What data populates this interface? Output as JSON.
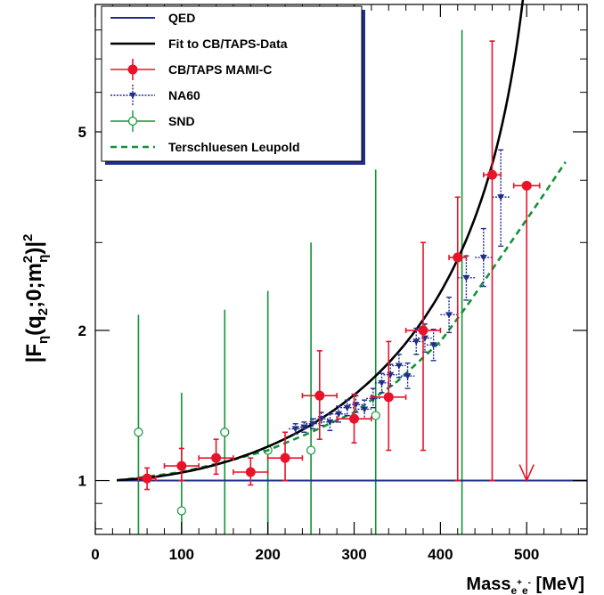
{
  "chart_data": {
    "type": "scatter",
    "title": "",
    "xlabel": {
      "main": "Mass",
      "sub": "e",
      "sup1": "+",
      "sub2": "e",
      "sup2": "-",
      "unit": " [MeV]"
    },
    "ylabel": {
      "p1": "|F",
      "s1": "η",
      "p2": "(q",
      "s2": "2",
      "p3": ";0;m",
      "sup3": "2",
      "s3": "η",
      "p4": ")|",
      "sup4": "2"
    },
    "x_scale": "linear",
    "y_scale": "log",
    "xlim": [
      0,
      570
    ],
    "ylim": [
      0.78,
      9.0
    ],
    "x_ticks": [
      "0",
      "100",
      "200",
      "300",
      "400",
      "500"
    ],
    "y_ticks": [
      {
        "value": 1,
        "label": "1"
      },
      {
        "value": 2,
        "label": "2"
      },
      {
        "value": 5,
        "label": "5"
      }
    ],
    "legend_position": "top-left",
    "colors": {
      "qed": "#1f2f8a",
      "fit": "#000000",
      "cbtaps": "#e8132a",
      "na60": "#1f2f8a",
      "snd": "#119436",
      "tl": "#119436"
    },
    "series": [
      {
        "key": "qed",
        "name": "QED",
        "kind": "line",
        "x": [
          25,
          570
        ],
        "y": [
          1.0,
          1.0
        ]
      },
      {
        "key": "fit",
        "name": "Fit to CB/TAPS-Data",
        "kind": "fit",
        "lambda_sq": 0.525,
        "x_range": [
          25,
          538
        ]
      },
      {
        "key": "cbtaps",
        "name": "CB/TAPS   MAMI-C",
        "kind": "points",
        "points": [
          {
            "x": 60,
            "y": 1.01,
            "xerr": 10,
            "ylo": 0.96,
            "yhi": 1.06
          },
          {
            "x": 100,
            "y": 1.07,
            "xerr": 20,
            "ylo": 1.0,
            "yhi": 1.16
          },
          {
            "x": 140,
            "y": 1.11,
            "xerr": 20,
            "ylo": 1.03,
            "yhi": 1.21
          },
          {
            "x": 180,
            "y": 1.04,
            "xerr": 20,
            "ylo": 0.98,
            "yhi": 1.11
          },
          {
            "x": 220,
            "y": 1.11,
            "xerr": 20,
            "ylo": 1.0,
            "yhi": 1.25
          },
          {
            "x": 260,
            "y": 1.48,
            "xerr": 20,
            "ylo": 1.21,
            "yhi": 1.82
          },
          {
            "x": 300,
            "y": 1.33,
            "xerr": 20,
            "ylo": 1.19,
            "yhi": 1.49
          },
          {
            "x": 340,
            "y": 1.47,
            "xerr": 20,
            "ylo": 1.15,
            "yhi": 1.9
          },
          {
            "x": 380,
            "y": 2.0,
            "xerr": 20,
            "ylo": 1.15,
            "yhi": 3.0
          },
          {
            "x": 420,
            "y": 2.8,
            "xerr": 10,
            "ylo": 1.0,
            "yhi": 3.7
          },
          {
            "x": 460,
            "y": 4.1,
            "xerr": 10,
            "ylo": 1.0,
            "yhi": 7.6
          },
          {
            "x": 500,
            "y": 3.9,
            "xerr": 15,
            "ylo": 1.0,
            "yhi": 3.9,
            "upper_limit": true
          }
        ]
      },
      {
        "key": "na60",
        "name": "NA60",
        "kind": "points",
        "points": [
          {
            "x": 232,
            "y": 1.27,
            "xerr": 8,
            "ylo": 1.24,
            "yhi": 1.3
          },
          {
            "x": 242,
            "y": 1.28,
            "xerr": 8,
            "ylo": 1.25,
            "yhi": 1.31
          },
          {
            "x": 252,
            "y": 1.3,
            "xerr": 8,
            "ylo": 1.27,
            "yhi": 1.33
          },
          {
            "x": 262,
            "y": 1.33,
            "xerr": 8,
            "ylo": 1.29,
            "yhi": 1.37
          },
          {
            "x": 272,
            "y": 1.31,
            "xerr": 8,
            "ylo": 1.26,
            "yhi": 1.36
          },
          {
            "x": 282,
            "y": 1.36,
            "xerr": 8,
            "ylo": 1.31,
            "yhi": 1.41
          },
          {
            "x": 292,
            "y": 1.4,
            "xerr": 8,
            "ylo": 1.35,
            "yhi": 1.45
          },
          {
            "x": 302,
            "y": 1.42,
            "xerr": 8,
            "ylo": 1.37,
            "yhi": 1.48
          },
          {
            "x": 312,
            "y": 1.39,
            "xerr": 8,
            "ylo": 1.33,
            "yhi": 1.45
          },
          {
            "x": 322,
            "y": 1.46,
            "xerr": 8,
            "ylo": 1.4,
            "yhi": 1.53
          },
          {
            "x": 332,
            "y": 1.57,
            "xerr": 8,
            "ylo": 1.5,
            "yhi": 1.64
          },
          {
            "x": 342,
            "y": 1.63,
            "xerr": 8,
            "ylo": 1.55,
            "yhi": 1.71
          },
          {
            "x": 352,
            "y": 1.7,
            "xerr": 8,
            "ylo": 1.61,
            "yhi": 1.79
          },
          {
            "x": 362,
            "y": 1.62,
            "xerr": 8,
            "ylo": 1.53,
            "yhi": 1.72
          },
          {
            "x": 372,
            "y": 1.9,
            "xerr": 8,
            "ylo": 1.79,
            "yhi": 2.02
          },
          {
            "x": 382,
            "y": 1.93,
            "xerr": 8,
            "ylo": 1.81,
            "yhi": 2.06
          },
          {
            "x": 392,
            "y": 1.87,
            "xerr": 8,
            "ylo": 1.74,
            "yhi": 2.01
          },
          {
            "x": 410,
            "y": 2.15,
            "xerr": 10,
            "ylo": 1.98,
            "yhi": 2.33
          },
          {
            "x": 430,
            "y": 2.55,
            "xerr": 10,
            "ylo": 2.3,
            "yhi": 2.82
          },
          {
            "x": 450,
            "y": 2.8,
            "xerr": 10,
            "ylo": 2.45,
            "yhi": 3.2
          },
          {
            "x": 470,
            "y": 3.7,
            "xerr": 10,
            "ylo": 2.95,
            "yhi": 4.6
          }
        ]
      },
      {
        "key": "snd",
        "name": "SND",
        "kind": "points",
        "points": [
          {
            "x": 50,
            "y": 1.25,
            "xerr": 0,
            "ylo": 0.78,
            "yhi": 2.15
          },
          {
            "x": 100,
            "y": 0.87,
            "xerr": 0,
            "ylo": 0.78,
            "yhi": 1.5
          },
          {
            "x": 150,
            "y": 1.25,
            "xerr": 0,
            "ylo": 0.78,
            "yhi": 2.2
          },
          {
            "x": 200,
            "y": 1.15,
            "xerr": 0,
            "ylo": 0.78,
            "yhi": 2.4
          },
          {
            "x": 250,
            "y": 1.15,
            "xerr": 0,
            "ylo": 0.78,
            "yhi": 3.0
          },
          {
            "x": 325,
            "y": 1.35,
            "xerr": 0,
            "ylo": 0.78,
            "yhi": 4.2
          },
          {
            "x": 425,
            "y": 9.0,
            "xerr": 0,
            "ylo": 0.78,
            "yhi": 8.0,
            "offscale": true
          }
        ]
      },
      {
        "key": "tl",
        "name": "Terschluesen Leupold",
        "kind": "curve",
        "x": [
          25,
          100,
          150,
          200,
          250,
          300,
          350,
          400,
          430,
          460,
          490,
          520,
          545
        ],
        "y": [
          1.0,
          1.04,
          1.09,
          1.15,
          1.25,
          1.37,
          1.58,
          1.9,
          2.23,
          2.65,
          3.15,
          3.75,
          4.35
        ]
      }
    ]
  }
}
